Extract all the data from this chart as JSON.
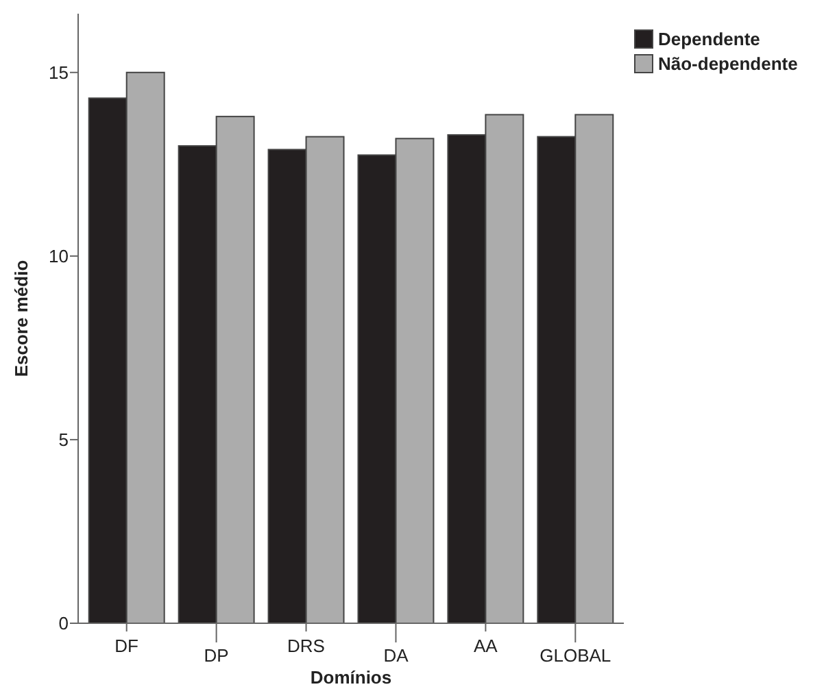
{
  "chart_data": {
    "type": "bar",
    "xlabel": "Domínios",
    "ylabel": "Escore médio",
    "categories": [
      "DF",
      "DP",
      "DRS",
      "DA",
      "AA",
      "GLOBAL"
    ],
    "series": [
      {
        "name": "Dependente",
        "color": "#231f20",
        "values": [
          14.3,
          13.0,
          12.9,
          12.75,
          13.3,
          13.25
        ]
      },
      {
        "name": "Não-dependente",
        "color": "#acacac",
        "values": [
          15.0,
          13.8,
          13.25,
          13.2,
          13.85,
          13.85
        ]
      }
    ],
    "ylim": [
      0,
      16.6
    ],
    "yticks": [
      0,
      5,
      10,
      15
    ],
    "grid": false,
    "legend": "top right"
  }
}
